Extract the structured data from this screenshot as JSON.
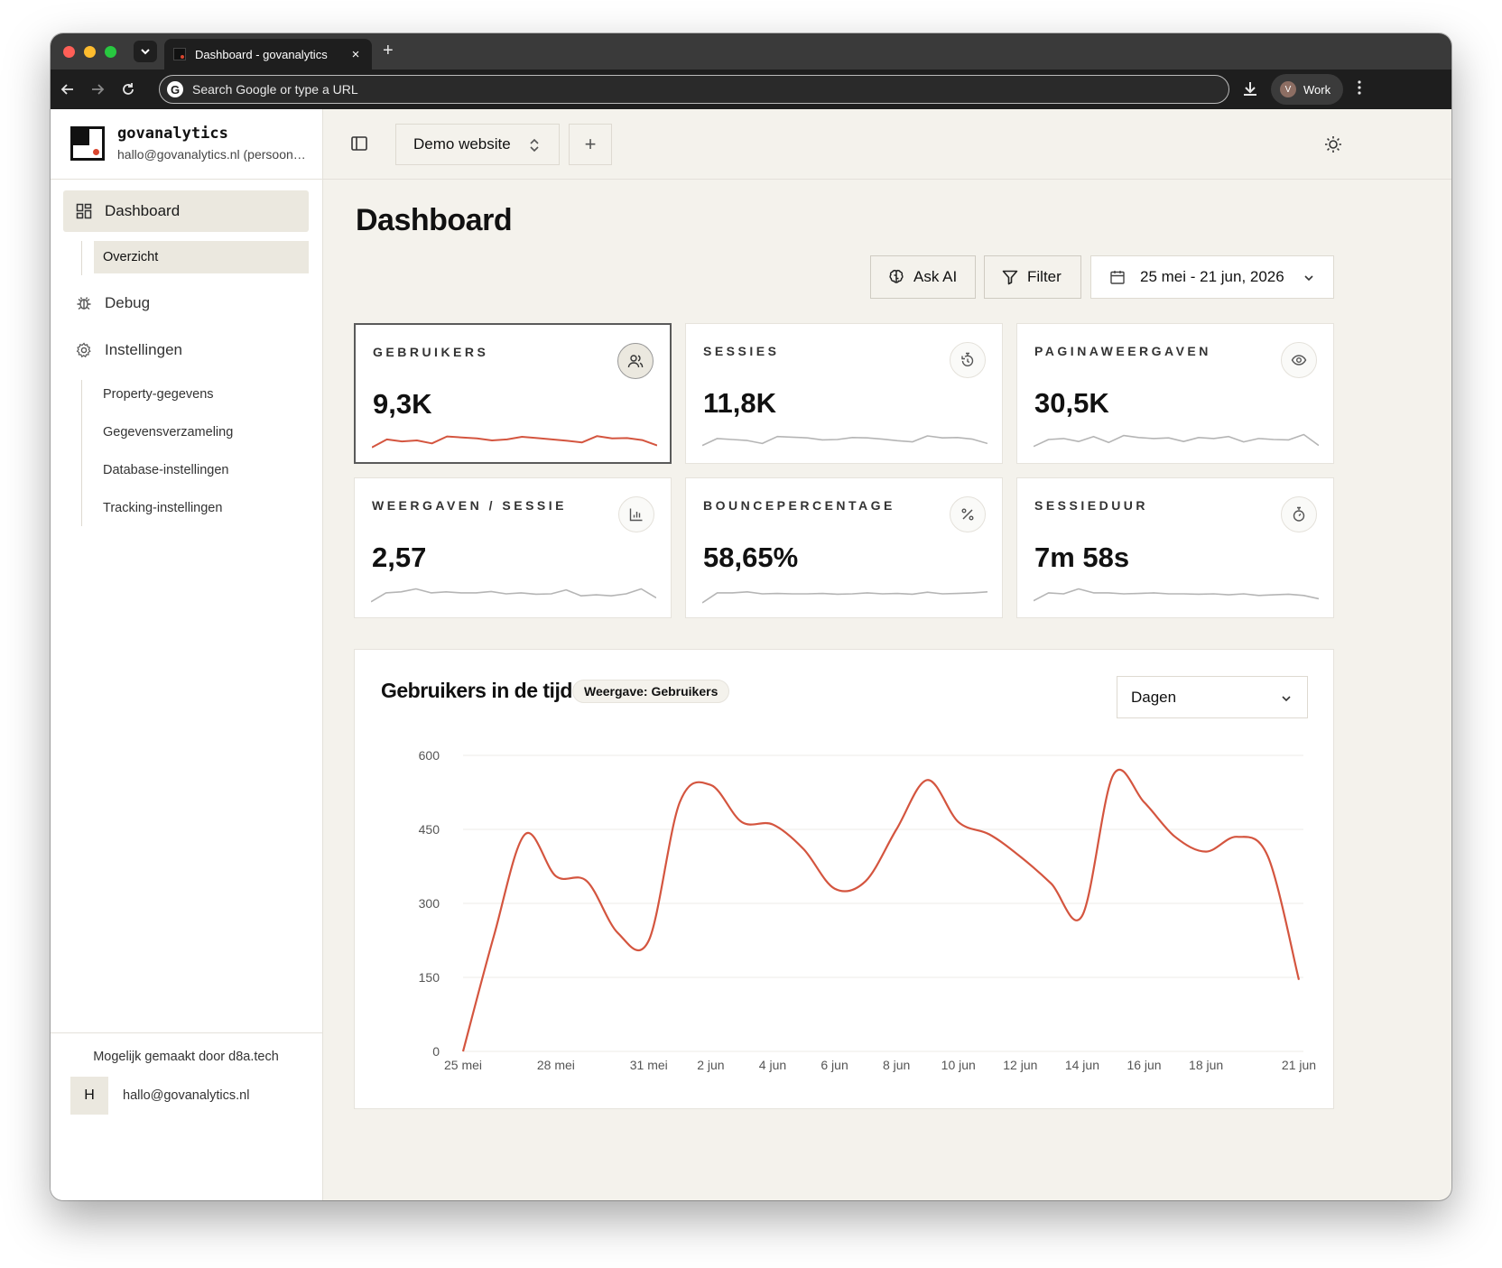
{
  "browser": {
    "tab_title": "Dashboard - govanalytics",
    "close_glyph": "×",
    "new_tab_glyph": "+",
    "omnibox_placeholder": "Search Google or type a URL",
    "profile_initial": "V",
    "profile_name": "Work"
  },
  "sidebar": {
    "brand_name": "govanalytics",
    "brand_email": "hallo@govanalytics.nl (persoonlijk)",
    "nav": [
      {
        "label": "Dashboard",
        "icon": "grid-icon",
        "active": true
      },
      {
        "label": "Debug",
        "icon": "bug-icon",
        "active": false
      },
      {
        "label": "Instellingen",
        "icon": "gear-icon",
        "active": false
      }
    ],
    "dashboard_sub": [
      {
        "label": "Overzicht",
        "active": true
      }
    ],
    "settings_sub": [
      {
        "label": "Property-gegevens"
      },
      {
        "label": "Gegevensverzameling"
      },
      {
        "label": "Database-instellingen"
      },
      {
        "label": "Tracking-instellingen"
      }
    ],
    "footer_made_by": "Mogelijk gemaakt door d8a.tech",
    "user_initial": "H",
    "user_email": "hallo@govanalytics.nl"
  },
  "topbar": {
    "site_name": "Demo website",
    "add_glyph": "+"
  },
  "page": {
    "title": "Dashboard",
    "ask_ai_label": "Ask AI",
    "filter_label": "Filter",
    "date_range": "25 mei - 21 jun, 2026"
  },
  "metrics": [
    {
      "label": "GEBRUIKERS",
      "value": "9,3K",
      "icon": "users-icon",
      "selected": true,
      "spark": [
        0.15,
        0.55,
        0.45,
        0.5,
        0.35,
        0.7,
        0.65,
        0.6,
        0.5,
        0.55,
        0.68,
        0.62,
        0.55,
        0.48,
        0.4,
        0.72,
        0.6,
        0.62,
        0.52,
        0.25
      ]
    },
    {
      "label": "SESSIES",
      "value": "11,8K",
      "icon": "timer-rotate-icon",
      "selected": false,
      "spark": [
        0.2,
        0.55,
        0.5,
        0.45,
        0.3,
        0.65,
        0.62,
        0.58,
        0.48,
        0.5,
        0.6,
        0.58,
        0.52,
        0.44,
        0.38,
        0.68,
        0.58,
        0.6,
        0.52,
        0.3
      ]
    },
    {
      "label": "PAGINAWEERGAVEN",
      "value": "30,5K",
      "icon": "eye-icon",
      "selected": false,
      "spark": [
        0.15,
        0.5,
        0.55,
        0.4,
        0.65,
        0.35,
        0.7,
        0.6,
        0.55,
        0.58,
        0.4,
        0.6,
        0.55,
        0.65,
        0.38,
        0.55,
        0.5,
        0.48,
        0.75,
        0.2
      ]
    },
    {
      "label": "WEERGAVEN / SESSIE",
      "value": "2,57",
      "icon": "bar-chart-icon",
      "selected": false,
      "spark": [
        0.1,
        0.55,
        0.6,
        0.75,
        0.55,
        0.6,
        0.55,
        0.55,
        0.62,
        0.5,
        0.55,
        0.48,
        0.5,
        0.7,
        0.4,
        0.45,
        0.4,
        0.5,
        0.75,
        0.3
      ]
    },
    {
      "label": "BOUNCEPERCENTAGE",
      "value": "58,65%",
      "icon": "percent-icon",
      "selected": false,
      "spark": [
        0.05,
        0.55,
        0.55,
        0.6,
        0.5,
        0.52,
        0.5,
        0.5,
        0.52,
        0.48,
        0.5,
        0.55,
        0.5,
        0.52,
        0.48,
        0.58,
        0.5,
        0.52,
        0.55,
        0.6
      ]
    },
    {
      "label": "SESSIEDUUR",
      "value": "7m 58s",
      "icon": "stopwatch-icon",
      "selected": false,
      "spark": [
        0.15,
        0.55,
        0.5,
        0.75,
        0.55,
        0.55,
        0.5,
        0.52,
        0.55,
        0.5,
        0.5,
        0.48,
        0.5,
        0.45,
        0.5,
        0.42,
        0.45,
        0.48,
        0.42,
        0.25
      ]
    }
  ],
  "chart_panel": {
    "title": "Gebruikers in de tijd",
    "badge": "Weergave: Gebruikers",
    "granularity": "Dagen"
  },
  "chart_data": {
    "type": "line",
    "title": "Gebruikers in de tijd",
    "x": [
      "25 mei",
      "26 mei",
      "27 mei",
      "28 mei",
      "29 mei",
      "30 mei",
      "31 mei",
      "1 jun",
      "2 jun",
      "3 jun",
      "4 jun",
      "5 jun",
      "6 jun",
      "7 jun",
      "8 jun",
      "9 jun",
      "10 jun",
      "11 jun",
      "12 jun",
      "13 jun",
      "14 jun",
      "15 jun",
      "16 jun",
      "17 jun",
      "18 jun",
      "19 jun",
      "20 jun",
      "21 jun"
    ],
    "x_tick_labels": [
      "25 mei",
      "28 mei",
      "31 mei",
      "2 jun",
      "4 jun",
      "6 jun",
      "8 jun",
      "10 jun",
      "12 jun",
      "14 jun",
      "16 jun",
      "18 jun",
      "21 jun"
    ],
    "series": [
      {
        "values": [
          0,
          235,
          440,
          355,
          345,
          240,
          225,
          505,
          540,
          465,
          460,
          410,
          330,
          345,
          450,
          550,
          465,
          440,
          395,
          340,
          275,
          560,
          505,
          435,
          405,
          435,
          395,
          145
        ],
        "color": "#d4553f"
      }
    ],
    "y_ticks": [
      0,
      150,
      300,
      450,
      600
    ],
    "ylim": [
      0,
      600
    ],
    "grid": true
  }
}
